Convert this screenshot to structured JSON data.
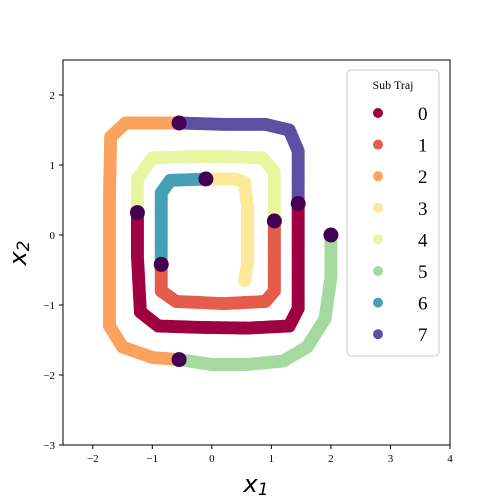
{
  "chart_data": {
    "type": "scatter",
    "title": "",
    "xlabel": "x",
    "xlabel_sub": "1",
    "ylabel": "x",
    "ylabel_sub": "2",
    "xlim": [
      -2.5,
      4
    ],
    "ylim": [
      -3,
      2.5
    ],
    "xticks": [
      -2,
      -1,
      0,
      1,
      2,
      3,
      4
    ],
    "yticks": [
      -3,
      -2,
      -1,
      0,
      1,
      2
    ],
    "grid": false,
    "legend": {
      "title": "Sub Traj",
      "placement": "top-right"
    },
    "series": [
      {
        "name": "0",
        "color": "#9e0142",
        "points": [
          [
            1.45,
            0.45
          ],
          [
            1.45,
            -0.2
          ],
          [
            1.45,
            -0.8
          ],
          [
            1.45,
            -1.05
          ],
          [
            1.3,
            -1.3
          ],
          [
            0.6,
            -1.33
          ],
          [
            -0.2,
            -1.32
          ],
          [
            -0.9,
            -1.3
          ],
          [
            -1.2,
            -1.1
          ],
          [
            -1.25,
            -0.3
          ],
          [
            -1.25,
            0.32
          ]
        ]
      },
      {
        "name": "1",
        "color": "#e55c4a",
        "points": [
          [
            1.05,
            0.2
          ],
          [
            1.05,
            -0.4
          ],
          [
            1.05,
            -0.8
          ],
          [
            0.9,
            -0.95
          ],
          [
            0.2,
            -0.98
          ],
          [
            -0.6,
            -0.95
          ],
          [
            -0.85,
            -0.8
          ],
          [
            -0.85,
            -0.42
          ]
        ]
      },
      {
        "name": "2",
        "color": "#fba35e",
        "points": [
          [
            -0.55,
            1.6
          ],
          [
            -1.0,
            1.6
          ],
          [
            -1.45,
            1.6
          ],
          [
            -1.7,
            1.4
          ],
          [
            -1.72,
            0.5
          ],
          [
            -1.72,
            -0.5
          ],
          [
            -1.72,
            -1.3
          ],
          [
            -1.5,
            -1.6
          ],
          [
            -1.0,
            -1.75
          ],
          [
            -0.55,
            -1.78
          ]
        ]
      },
      {
        "name": "3",
        "color": "#fee999",
        "points": [
          [
            -0.1,
            0.8
          ],
          [
            0.4,
            0.8
          ],
          [
            0.55,
            0.75
          ],
          [
            0.6,
            0.4
          ],
          [
            0.6,
            0.0
          ],
          [
            0.6,
            -0.4
          ],
          [
            0.55,
            -0.65
          ]
        ]
      },
      {
        "name": "4",
        "color": "#e9f6a1",
        "points": [
          [
            -1.25,
            0.32
          ],
          [
            -1.25,
            0.8
          ],
          [
            -1.0,
            1.1
          ],
          [
            -0.4,
            1.12
          ],
          [
            0.3,
            1.12
          ],
          [
            0.85,
            1.1
          ],
          [
            1.05,
            0.9
          ],
          [
            1.05,
            0.2
          ]
        ]
      },
      {
        "name": "5",
        "color": "#a4da9f",
        "points": [
          [
            -0.55,
            -1.78
          ],
          [
            0.0,
            -1.85
          ],
          [
            0.6,
            -1.85
          ],
          [
            1.2,
            -1.8
          ],
          [
            1.6,
            -1.6
          ],
          [
            1.9,
            -1.2
          ],
          [
            2.0,
            -0.6
          ],
          [
            2.0,
            0.0
          ]
        ]
      },
      {
        "name": "6",
        "color": "#45a0b6",
        "points": [
          [
            -0.85,
            -0.42
          ],
          [
            -0.85,
            0.2
          ],
          [
            -0.85,
            0.6
          ],
          [
            -0.7,
            0.78
          ],
          [
            -0.1,
            0.8
          ]
        ]
      },
      {
        "name": "7",
        "color": "#5e4fa2",
        "points": [
          [
            -0.55,
            1.6
          ],
          [
            0.2,
            1.58
          ],
          [
            0.9,
            1.58
          ],
          [
            1.3,
            1.5
          ],
          [
            1.45,
            1.2
          ],
          [
            1.45,
            0.45
          ]
        ]
      }
    ],
    "start_markers": {
      "color": "#440154",
      "points": [
        [
          -0.55,
          1.6
        ],
        [
          1.45,
          0.45
        ],
        [
          1.05,
          0.2
        ],
        [
          -0.1,
          0.8
        ],
        [
          -1.25,
          0.32
        ],
        [
          -0.85,
          -0.42
        ],
        [
          -0.55,
          -1.78
        ],
        [
          2.0,
          0.0
        ]
      ]
    }
  }
}
